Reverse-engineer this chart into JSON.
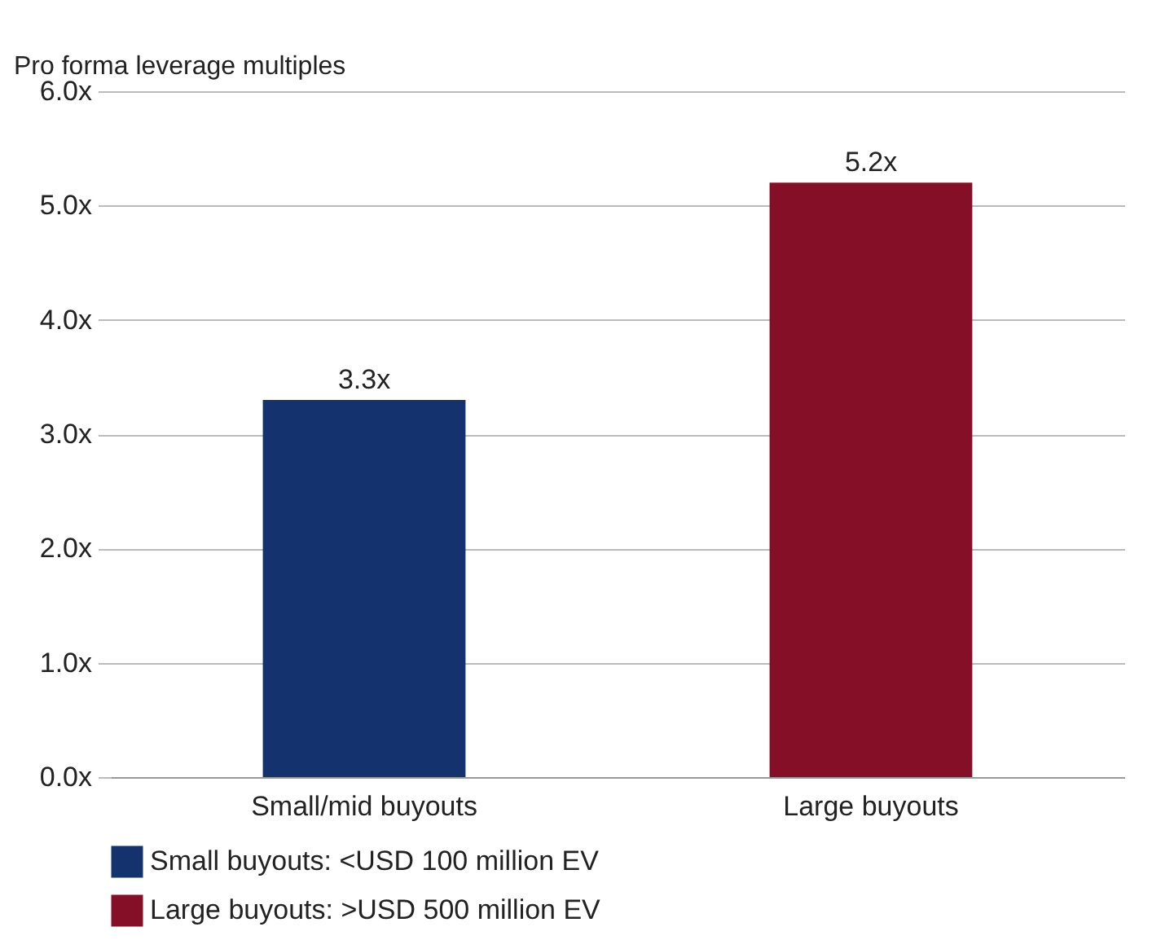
{
  "chart_data": {
    "type": "bar",
    "ylabel": "Pro forma leverage multiples",
    "categories": [
      "Small/mid buyouts",
      "Large buyouts"
    ],
    "series": [
      {
        "name": "Small buyouts: <USD 100 million EV",
        "color": "#14326e",
        "values": [
          3.3,
          null
        ],
        "value_labels": [
          "3.3x",
          null
        ]
      },
      {
        "name": "Large buyouts: >USD 500 million EV",
        "color": "#850f26",
        "values": [
          null,
          5.2
        ],
        "value_labels": [
          null,
          "5.2x"
        ]
      }
    ],
    "ylim": [
      0,
      6
    ],
    "yticks": [
      {
        "value": 0,
        "label": "0.0x"
      },
      {
        "value": 1,
        "label": "1.0x"
      },
      {
        "value": 2,
        "label": "2.0x"
      },
      {
        "value": 3,
        "label": "3.0x"
      },
      {
        "value": 4,
        "label": "4.0x"
      },
      {
        "value": 5,
        "label": "5.0x"
      },
      {
        "value": 6,
        "label": "6.0x"
      }
    ],
    "grid": "y",
    "legend": "bottom"
  }
}
